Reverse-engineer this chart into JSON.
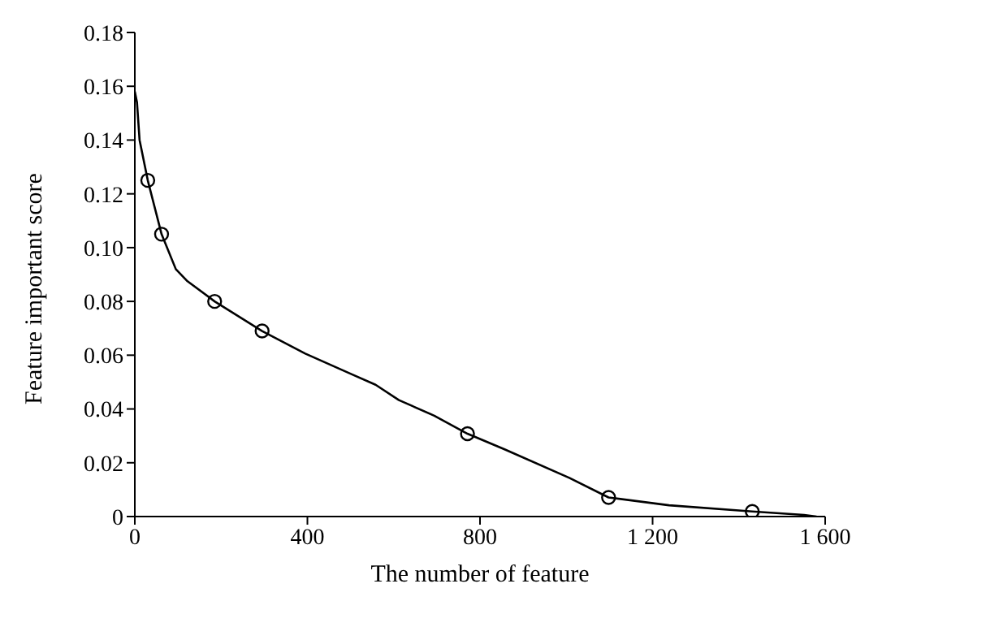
{
  "chart_data": {
    "type": "line",
    "xlabel": "The number of feature",
    "ylabel": "Feature important score",
    "xlim": [
      0,
      1600
    ],
    "xticks": [
      0,
      400,
      800,
      {
        "value": 1200,
        "label": "1 200"
      },
      {
        "value": 1600,
        "label": "1 600"
      }
    ],
    "ylim": [
      0,
      0.18
    ],
    "yticks": [
      0,
      0.02,
      0.04,
      0.06,
      0.08,
      {
        "value": 0.1,
        "label": "0.10"
      },
      0.12,
      0.14,
      0.16,
      0.18
    ],
    "grid": false,
    "series": [
      {
        "color": "#000000",
        "marker": "none",
        "x": [
          0,
          5,
          11,
          30,
          62,
          95,
          122,
          185,
          295,
          395,
          503,
          558,
          612,
          694,
          771,
          857,
          1007,
          1098,
          1238,
          1431,
          1551,
          1580
        ],
        "values": [
          0.158,
          0.154,
          0.14,
          0.125,
          0.105,
          0.092,
          0.0875,
          0.08,
          0.069,
          0.0606,
          0.0529,
          0.049,
          0.0433,
          0.0375,
          0.0308,
          0.025,
          0.0144,
          0.0071,
          0.0042,
          0.0019,
          0.0006,
          0
        ]
      },
      {
        "type": "scatter",
        "color": "#000000",
        "marker": "circle",
        "x": [
          30,
          62,
          185,
          295,
          771,
          1098,
          1431
        ],
        "values": [
          0.125,
          0.105,
          0.08,
          0.069,
          0.0308,
          0.0071,
          0.0019
        ]
      }
    ]
  }
}
